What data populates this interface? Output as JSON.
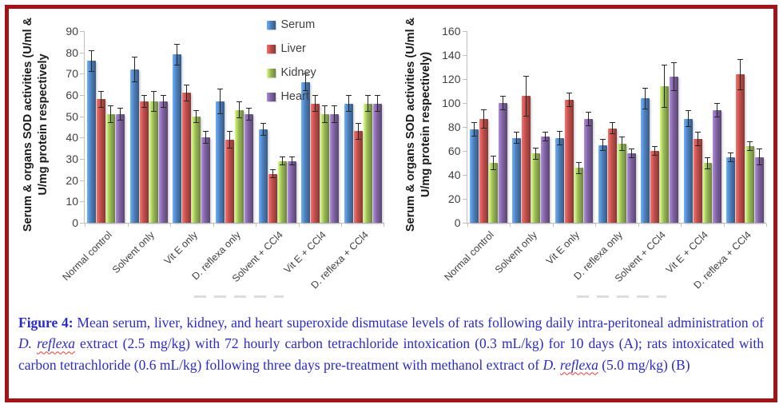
{
  "colors": {
    "frame_border": "#A31418",
    "caption_text": "#2B2BC8",
    "axis_line": "#BFBFBF",
    "tick_text": "#404040",
    "error_bar": "#262626",
    "spellcheck_underline": "#E03C31",
    "serum": "#4F81BD",
    "liver": "#C0504D",
    "kidney": "#9BBB59",
    "heart": "#8064A2"
  },
  "caption": {
    "label": "Figure 4:",
    "t1": " Mean serum, liver, kidney, and heart superoxide dismutase levels of rats following daily intra-peritoneal administration of ",
    "i1a": "D. ",
    "i1b": "reflexa",
    "t2": " extract (2.5 mg/kg) with 72 hourly carbon tetrachloride intoxication (0.3 mL/kg) for 10 days (A); rats intoxicated with carbon tetrachloride (0.6 mL/kg) following three days pre-treatment with methanol extract of ",
    "i2a": "D. ",
    "i2b": "reflexa",
    "t3": " (5.0 mg/kg) (B)"
  },
  "chart_data": [
    {
      "type": "bar",
      "panel": "A",
      "ylabel": "Serum & organs SOD activities (U/ml & U/mg protein respectively",
      "ylabel_line1": "Serum & organs SOD activities (U/ml &",
      "ylabel_line2": "U/mg protein respectively",
      "xlabel": "",
      "categories": [
        "Normal control",
        "Solvent only",
        "Vit E only",
        "D. reflexa only",
        "Solvent + CCl4",
        "Vit E + CCl4",
        "D. reflexa + CCl4"
      ],
      "series": [
        {
          "name": "Serum",
          "color": "#4F81BD",
          "values": [
            76,
            72,
            79,
            57,
            44,
            66,
            56
          ],
          "errors": [
            5,
            6,
            5,
            6,
            3,
            4,
            4
          ]
        },
        {
          "name": "Liver",
          "color": "#C0504D",
          "values": [
            58,
            57,
            61,
            39,
            23,
            56,
            43
          ],
          "errors": [
            4,
            3,
            4,
            4,
            2,
            4,
            4
          ]
        },
        {
          "name": "Kidney",
          "color": "#9BBB59",
          "values": [
            51,
            57,
            50,
            53,
            29,
            51,
            56
          ],
          "errors": [
            4,
            5,
            3,
            4,
            2,
            4,
            4
          ]
        },
        {
          "name": "Heart",
          "color": "#8064A2",
          "values": [
            51,
            57,
            40,
            51,
            29,
            51,
            56
          ],
          "errors": [
            3,
            3,
            3,
            3,
            2,
            4,
            4
          ]
        }
      ],
      "ylim": [
        0,
        90
      ],
      "ytick_step": 10,
      "grid": false,
      "legend": true,
      "legend_position": "top-right",
      "error_bars": true
    },
    {
      "type": "bar",
      "panel": "B",
      "ylabel": "Serum & organs SOD activities (U/ml & U/mg protein respectively)",
      "ylabel_line1": "Serum & organs SOD activities (U/ml &",
      "ylabel_line2": "U/mg protein respectively)",
      "xlabel": "",
      "categories": [
        "Normal control",
        "Solvent only",
        "Vit E only",
        "D. reflexa only",
        "Solvent + CCl4",
        "Vit E + CCl4",
        "D. reflexa + CCl4"
      ],
      "series": [
        {
          "name": "Serum",
          "color": "#4F81BD",
          "values": [
            78,
            71,
            71,
            65,
            104,
            87,
            55
          ],
          "errors": [
            6,
            5,
            6,
            5,
            9,
            7,
            4
          ]
        },
        {
          "name": "Liver",
          "color": "#C0504D",
          "values": [
            87,
            106,
            103,
            79,
            60,
            70,
            124
          ],
          "errors": [
            8,
            17,
            6,
            5,
            4,
            6,
            13
          ]
        },
        {
          "name": "Kidney",
          "color": "#9BBB59",
          "values": [
            50,
            58,
            46,
            66,
            114,
            50,
            64
          ],
          "errors": [
            6,
            5,
            5,
            6,
            18,
            5,
            4
          ]
        },
        {
          "name": "Heart",
          "color": "#8064A2",
          "values": [
            100,
            72,
            87,
            58,
            122,
            94,
            55
          ],
          "errors": [
            6,
            4,
            6,
            4,
            12,
            6,
            7
          ]
        }
      ],
      "ylim": [
        0,
        160
      ],
      "ytick_step": 20,
      "grid": false,
      "legend": false,
      "error_bars": true
    }
  ]
}
